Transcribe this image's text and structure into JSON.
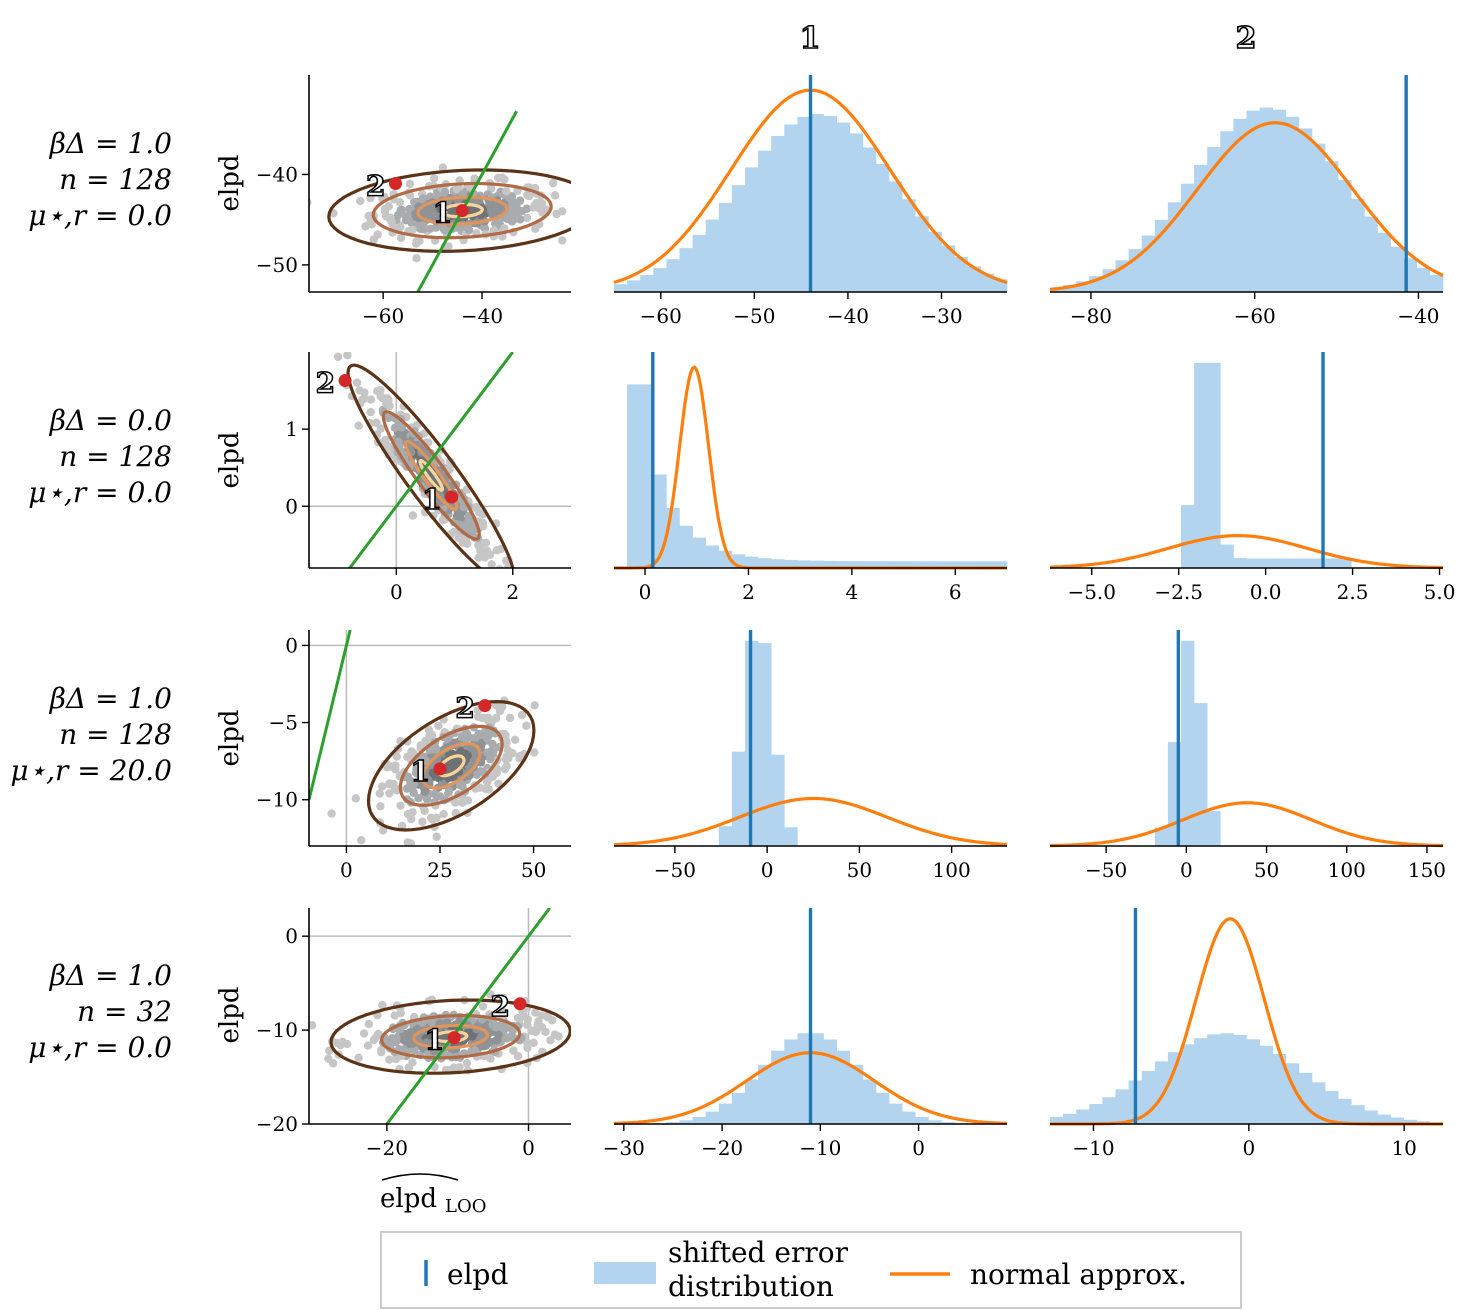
{
  "colors": {
    "elpd_line": "#1f77b4",
    "hist_fill": "#b3d4ef",
    "normal_curve": "#ff7f0e",
    "ref_line": "#2ca02c",
    "point": "#d62728",
    "scatter": "#bdbdbd",
    "contour": [
      "#5c3317",
      "#b06a45",
      "#e0955f",
      "#f8d49a"
    ]
  },
  "column_titles": [
    "1",
    "2"
  ],
  "x_axis_label": "elpd̂ LOO",
  "y_axis_label": "elpd",
  "legend": {
    "elpd": "elpd",
    "shifted_line1": "shifted error",
    "shifted_line2": "distribution",
    "normal": "normal approx."
  },
  "chart_data": [
    {
      "row_label": [
        "βΔ = 1.0",
        "n = 128",
        "μ⋆,r = 0.0"
      ],
      "scatter": {
        "type": "scatter",
        "xlim": [
          -75,
          -22
        ],
        "ylim": [
          -53,
          -29
        ],
        "xticks": [
          -60,
          -40
        ],
        "yticks": [
          -50,
          -40
        ],
        "center": [
          -44,
          -44
        ],
        "spread": [
          9,
          1.5
        ],
        "rho": 0.15,
        "contour_scales": [
          3.0,
          2.0,
          1.0,
          0.45
        ],
        "points": [
          {
            "label": "1",
            "x": -44,
            "y": -44
          },
          {
            "label": "2",
            "x": -57.5,
            "y": -41
          }
        ],
        "ref_line": [
          [
            -53,
            -53
          ],
          [
            -33,
            -33
          ]
        ],
        "show_zero_lines": false
      },
      "hist1": {
        "type": "bar",
        "xlim": [
          -65,
          -23
        ],
        "xticks": [
          -60,
          -50,
          -40,
          -30
        ],
        "elpd": -44,
        "mu": -44,
        "sigma": 8.5,
        "skew": 0.1,
        "bins": [
          -65,
          -62,
          -59,
          -56,
          -53,
          -50,
          -47,
          -45,
          -44,
          -42,
          -39,
          -36,
          -33,
          -30,
          -27,
          -24
        ],
        "curve_peak_frac": 0.93
      },
      "hist2": {
        "type": "bar",
        "xlim": [
          -85,
          -37
        ],
        "xticks": [
          -80,
          -60,
          -40
        ],
        "elpd": -41.5,
        "mu": -57.5,
        "sigma": 9.5,
        "skew": -0.1,
        "curve_peak_frac": 0.78
      }
    },
    {
      "row_label": [
        "βΔ = 0.0",
        "n = 128",
        "μ⋆,r = 0.0"
      ],
      "scatter": {
        "type": "scatter",
        "xlim": [
          -1.5,
          3.0
        ],
        "ylim": [
          -0.8,
          2.0
        ],
        "xticks": [
          0,
          2
        ],
        "yticks": [
          0,
          1
        ],
        "center": [
          0.6,
          0.4
        ],
        "spread": [
          0.55,
          0.55
        ],
        "rho": -0.93,
        "contour_scales": [
          2.6,
          1.5,
          0.8,
          0.35
        ],
        "points": [
          {
            "label": "1",
            "x": 0.95,
            "y": 0.12
          },
          {
            "label": "2",
            "x": -0.88,
            "y": 1.63
          }
        ],
        "ref_line": [
          [
            -1.5,
            -1.5
          ],
          [
            2.0,
            2.0
          ]
        ],
        "show_zero_lines": true
      },
      "hist1": {
        "type": "bar",
        "xlim": [
          -0.6,
          7.0
        ],
        "xticks": [
          0,
          2,
          4,
          6
        ],
        "elpd": 0.15,
        "mu": 0.95,
        "sigma": 0.28,
        "shape": "exp",
        "rate": 1.6,
        "curve_peak_frac": 0.93
      },
      "hist2": {
        "type": "bar",
        "xlim": [
          -6.2,
          5.1
        ],
        "xticks": [
          -5.0,
          -2.5,
          0.0,
          2.5,
          5.0
        ],
        "xtick_labels": [
          "−5.0",
          "−2.5",
          "0.0",
          "2.5",
          "5.0"
        ],
        "elpd": 1.65,
        "mu": -0.8,
        "sigma": 2.0,
        "shape": "spike",
        "curve_peak_frac": 0.15
      }
    },
    {
      "row_label": [
        "βΔ = 1.0",
        "n = 128",
        "μ⋆,r = 20.0"
      ],
      "scatter": {
        "type": "scatter",
        "xlim": [
          -10,
          60
        ],
        "ylim": [
          -13,
          1
        ],
        "xticks": [
          0,
          25,
          50
        ],
        "yticks": [
          -10,
          -5,
          0
        ],
        "center": [
          28,
          -7.8
        ],
        "spread": [
          8.5,
          1.6
        ],
        "rho": 0.55,
        "contour_scales": [
          2.6,
          1.6,
          0.9,
          0.4
        ],
        "points": [
          {
            "label": "1",
            "x": 25,
            "y": -8
          },
          {
            "label": "2",
            "x": 37,
            "y": -3.9
          }
        ],
        "ref_line": [
          [
            -10,
            -10
          ],
          [
            1,
            1
          ]
        ],
        "show_zero_lines": true
      },
      "hist1": {
        "type": "bar",
        "xlim": [
          -83,
          130
        ],
        "xticks": [
          -50,
          0,
          50,
          100
        ],
        "elpd": -9,
        "mu": 25,
        "sigma": 40,
        "shape": "narrow",
        "hist_center": -5,
        "hist_sigma": 8,
        "curve_peak_frac": 0.22
      },
      "hist2": {
        "type": "bar",
        "xlim": [
          -85,
          160
        ],
        "xticks": [
          -50,
          0,
          50,
          100,
          150
        ],
        "elpd": -5,
        "mu": 38,
        "sigma": 40,
        "shape": "narrow",
        "hist_center": 2,
        "hist_sigma": 8,
        "curve_peak_frac": 0.2
      }
    },
    {
      "row_label": [
        "βΔ = 1.0",
        "n = 32",
        "μ⋆,r = 0.0"
      ],
      "scatter": {
        "type": "scatter",
        "xlim": [
          -31,
          6
        ],
        "ylim": [
          -20,
          3
        ],
        "xticks": [
          -20,
          0
        ],
        "yticks": [
          -20,
          -10,
          0
        ],
        "center": [
          -11,
          -10.7
        ],
        "spread": [
          6.5,
          1.5
        ],
        "rho": 0.15,
        "contour_scales": [
          2.6,
          1.5,
          0.8,
          0.35
        ],
        "points": [
          {
            "label": "1",
            "x": -10.5,
            "y": -10.8
          },
          {
            "label": "2",
            "x": -1.2,
            "y": -7.2
          }
        ],
        "ref_line": [
          [
            -20,
            -20
          ],
          [
            3,
            3
          ]
        ],
        "show_zero_lines": true
      },
      "hist1": {
        "type": "bar",
        "xlim": [
          -31,
          9
        ],
        "xticks": [
          -30,
          -20,
          -10,
          0
        ],
        "elpd": -11,
        "mu": -11,
        "sigma": 6.5,
        "hist_center": -11,
        "hist_sigma": 5,
        "curve_peak_frac": 0.33
      },
      "hist2": {
        "type": "bar",
        "xlim": [
          -12.8,
          12.5
        ],
        "xticks": [
          -10,
          0,
          10
        ],
        "elpd": -7.3,
        "mu": -1.2,
        "sigma": 2.2,
        "hist_center": -1.5,
        "hist_sigma": 4.8,
        "curve_peak_frac": 0.95
      }
    }
  ]
}
